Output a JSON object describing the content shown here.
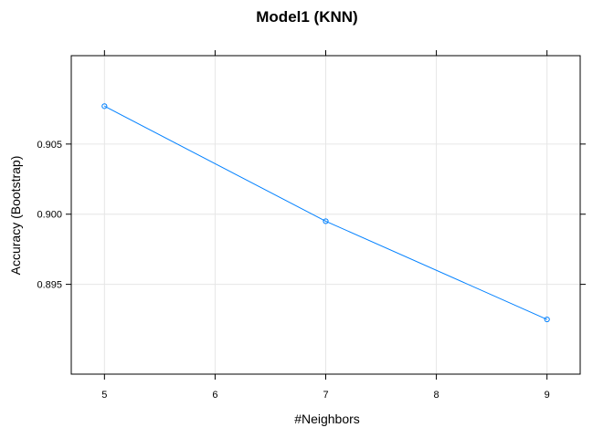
{
  "chart_data": {
    "type": "line",
    "title": "Model1 (KNN)",
    "xlabel": "#Neighbors",
    "ylabel": "Accuracy (Bootstrap)",
    "x": [
      5,
      7,
      9
    ],
    "series": [
      {
        "values": [
          0.9077,
          0.8995,
          0.8925
        ]
      }
    ],
    "xlim": [
      4.7,
      9.3
    ],
    "ylim": [
      0.8886,
      0.9113
    ],
    "xticks": [
      5,
      6,
      7,
      8,
      9
    ],
    "yticks": [
      0.895,
      0.9,
      0.905
    ],
    "xtick_labels": [
      "5",
      "6",
      "7",
      "8",
      "9"
    ],
    "ytick_labels": [
      "0.895",
      "0.900",
      "0.905"
    ],
    "grid": true,
    "colors": {
      "series": "#0080ff",
      "grid": "#e6e6e6",
      "frame": "#000000"
    }
  }
}
